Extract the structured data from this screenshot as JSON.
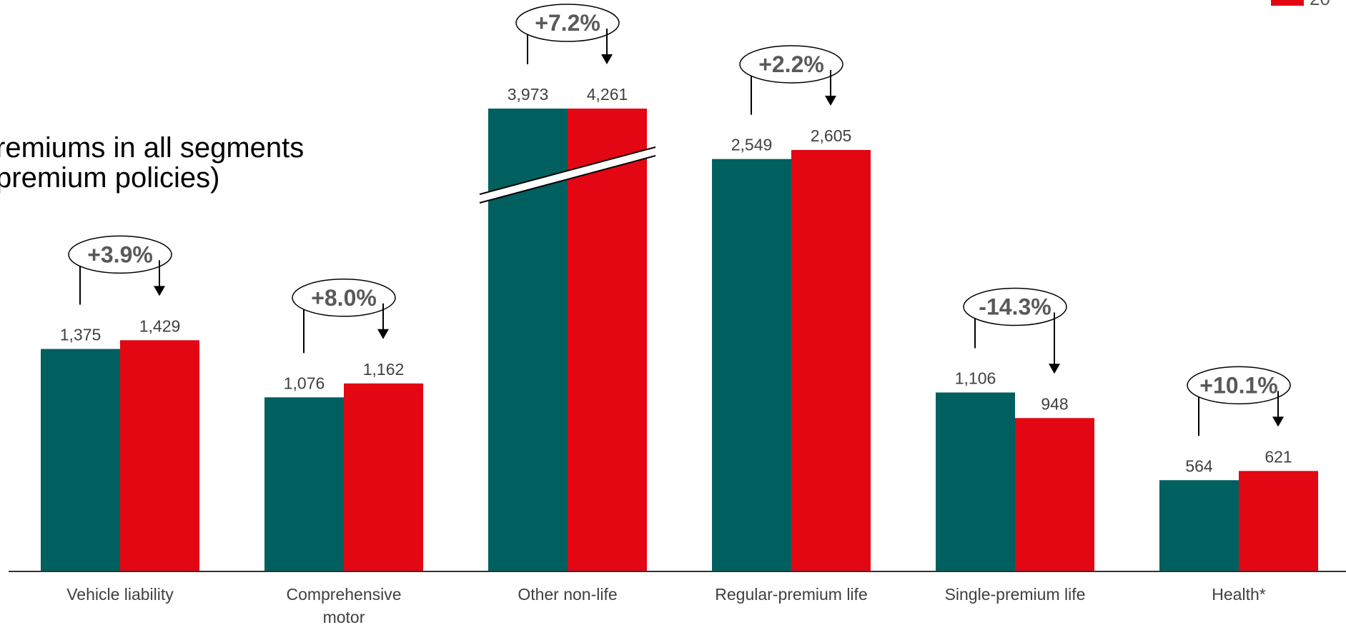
{
  "title_lines": [
    "remiums in all segments",
    "premium policies)"
  ],
  "corner_label": "20",
  "colors": {
    "series_prior": "#005f5f",
    "series_current": "#e30613",
    "axis": "#333333",
    "value_text": "#404040",
    "change_text": "#595959"
  },
  "chart_data": {
    "type": "bar",
    "categories": [
      "Vehicle liability",
      "Comprehensive\nmotor",
      "Other non-life",
      "Regular-premium life",
      "Single-premium life",
      "Health*"
    ],
    "series": [
      {
        "values": [
          1375,
          1076,
          3973,
          2549,
          1106,
          564
        ]
      },
      {
        "values": [
          1429,
          1162,
          4261,
          2605,
          948,
          621
        ]
      }
    ],
    "value_labels": [
      [
        "1,375",
        "1,076",
        "3,973",
        "2,549",
        "1,106",
        "564"
      ],
      [
        "1,429",
        "1,162",
        "4,261",
        "2,605",
        "948",
        "621"
      ]
    ],
    "changes": [
      "+3.9%",
      "+8.0%",
      "+7.2%",
      "+2.2%",
      "-14.3%",
      "+10.1%"
    ],
    "axis_break_category": "Other non-life",
    "grid": false,
    "legend": "none"
  }
}
